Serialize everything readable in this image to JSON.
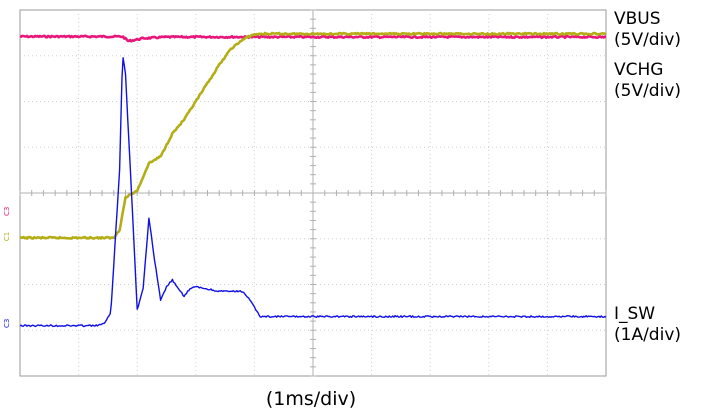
{
  "chart_data": {
    "type": "line",
    "xlabel": "(1ms/div)",
    "grid": true,
    "x_unit": "ms",
    "xlim": [
      0,
      10
    ],
    "y_unit": "div",
    "ylim": [
      -4,
      4
    ],
    "series": [
      {
        "name": "VBUS",
        "scale": "(5V/div)",
        "color": "#e8157b",
        "ground_marker": "C3",
        "x": [
          0,
          1.5,
          1.75,
          1.85,
          2.1,
          2.5,
          10
        ],
        "y": [
          3.42,
          3.42,
          3.42,
          3.32,
          3.38,
          3.41,
          3.41
        ]
      },
      {
        "name": "VCHG",
        "scale": "(5V/div)",
        "color": "#b5ad16",
        "ground_marker": "C1",
        "x": [
          0,
          1.6,
          1.7,
          1.8,
          2.0,
          2.2,
          2.4,
          2.6,
          2.8,
          3.0,
          3.2,
          3.4,
          3.6,
          3.8,
          3.95,
          4.1,
          10
        ],
        "y": [
          -0.98,
          -0.98,
          -0.8,
          -0.1,
          0.05,
          0.65,
          0.8,
          1.3,
          1.6,
          2.0,
          2.4,
          2.8,
          3.15,
          3.35,
          3.45,
          3.48,
          3.48
        ]
      },
      {
        "name": "I_SW",
        "scale": "(1A/div)",
        "color": "#1010e6",
        "ground_marker": "C3",
        "x": [
          0,
          1.3,
          1.45,
          1.55,
          1.7,
          1.75,
          1.8,
          1.9,
          2.0,
          2.1,
          2.2,
          2.3,
          2.4,
          2.5,
          2.6,
          2.7,
          2.8,
          2.9,
          3.0,
          3.2,
          3.4,
          3.6,
          3.8,
          3.9,
          4.1,
          10
        ],
        "y": [
          -2.9,
          -2.9,
          -2.85,
          -2.6,
          0.5,
          3.05,
          2.6,
          0.1,
          -2.55,
          -2.1,
          -0.55,
          -1.5,
          -2.35,
          -2.05,
          -1.9,
          -2.1,
          -2.25,
          -2.1,
          -2.05,
          -2.1,
          -2.15,
          -2.15,
          -2.15,
          -2.3,
          -2.7,
          -2.7
        ]
      }
    ]
  }
}
